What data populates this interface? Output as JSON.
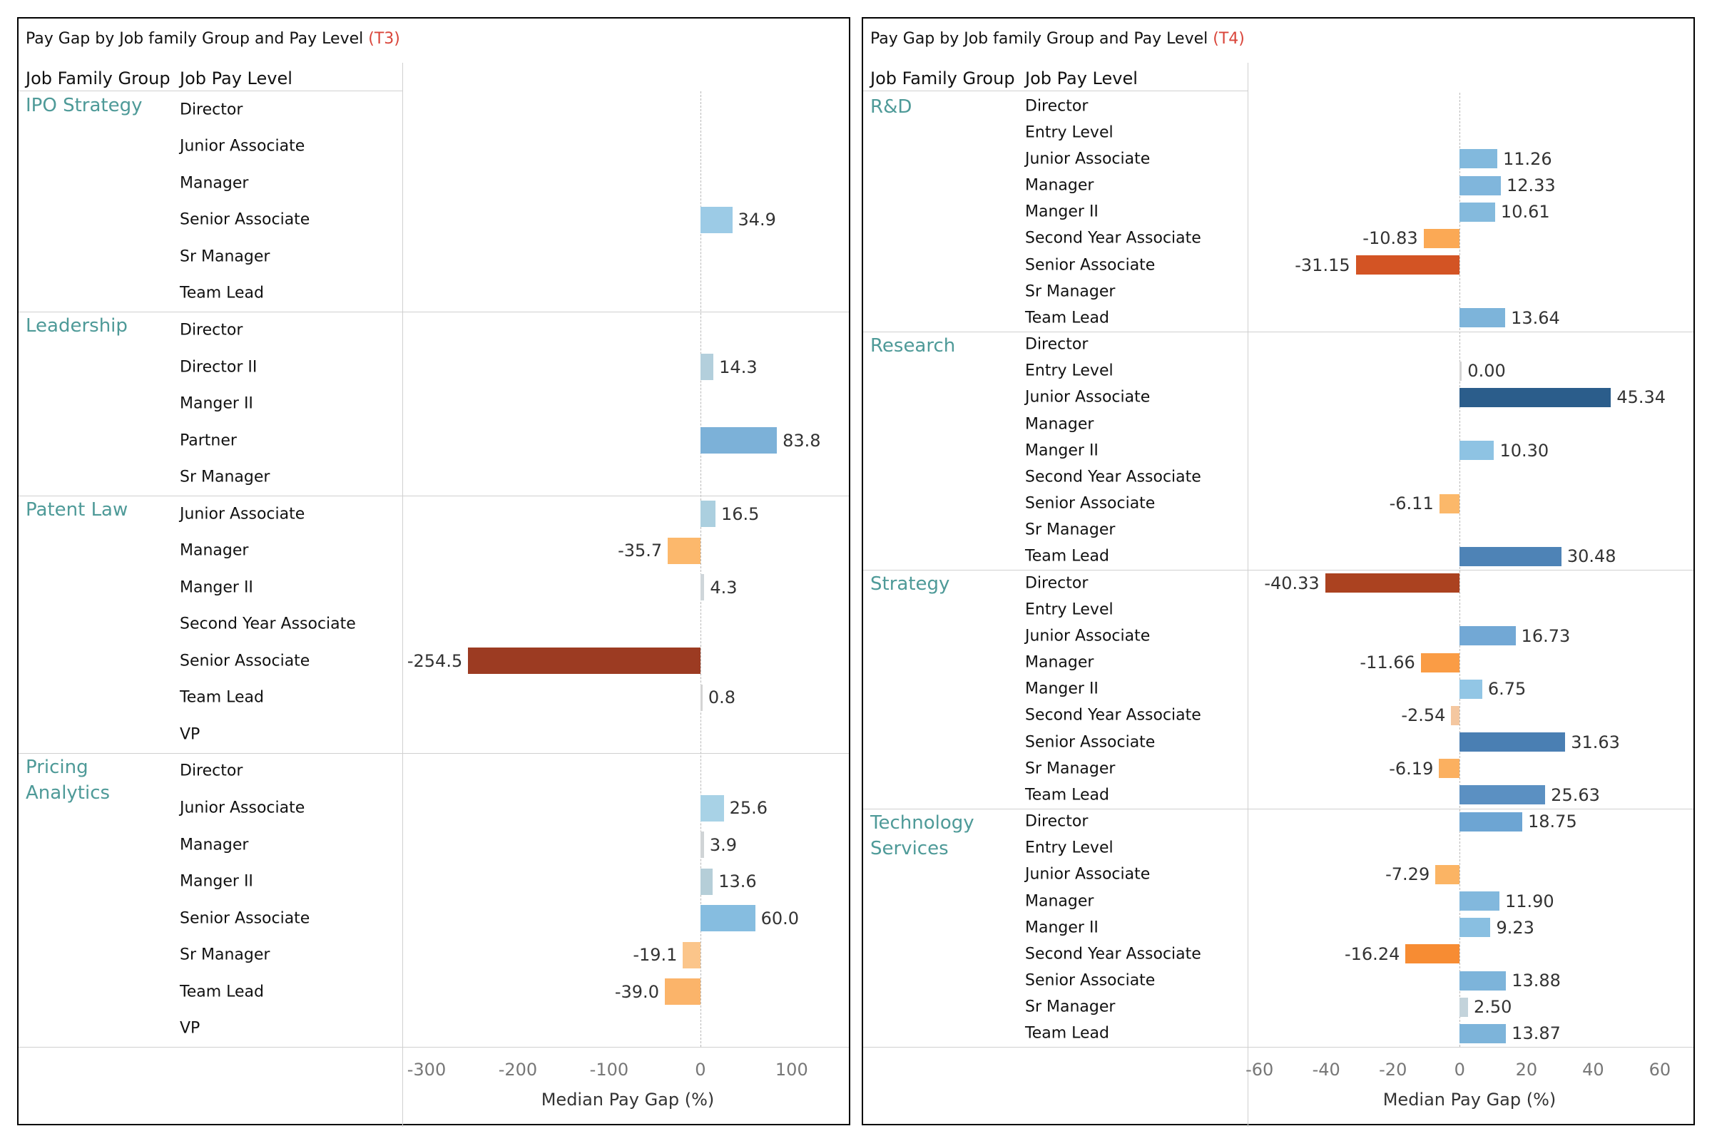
{
  "colors": {
    "category_text": "#4e9a98",
    "accent_tag": "#d9453a",
    "gridline": "#d0d0d0"
  },
  "chart_data": [
    {
      "type": "bar",
      "orientation": "horizontal",
      "title": "Pay Gap by Job family Group and Pay Level",
      "title_tag": "(T3)",
      "column_headers": [
        "Job Family Group",
        "Job Pay Level"
      ],
      "xlabel": "Median Pay Gap (%)",
      "xlim": [
        -325,
        140
      ],
      "xticks": [
        -300,
        -200,
        -100,
        0,
        100
      ],
      "value_format": 1,
      "groups": [
        {
          "name": "IPO Strategy",
          "rows": [
            {
              "level": "Director",
              "value": null
            },
            {
              "level": "Junior Associate",
              "value": null
            },
            {
              "level": "Manager",
              "value": null
            },
            {
              "level": "Senior Associate",
              "value": 34.9,
              "color": "#9ccbe6"
            },
            {
              "level": "Sr Manager",
              "value": null
            },
            {
              "level": "Team Lead",
              "value": null
            }
          ]
        },
        {
          "name": "Leadership",
          "rows": [
            {
              "level": "Director",
              "value": null
            },
            {
              "level": "Director II",
              "value": 14.3,
              "color": "#b3cfdc"
            },
            {
              "level": "Manger II",
              "value": null
            },
            {
              "level": "Partner",
              "value": 83.8,
              "color": "#7cb1d8"
            },
            {
              "level": "Sr Manager",
              "value": null
            }
          ]
        },
        {
          "name": "Patent Law",
          "rows": [
            {
              "level": "Junior Associate",
              "value": 16.5,
              "color": "#abcfdf"
            },
            {
              "level": "Manager",
              "value": -35.7,
              "color": "#fcb86c"
            },
            {
              "level": "Manger II",
              "value": 4.3,
              "color": "#cfd6da"
            },
            {
              "level": "Second Year Associate",
              "value": null
            },
            {
              "level": "Senior Associate",
              "value": -254.5,
              "color": "#9c3b22"
            },
            {
              "level": "Team Lead",
              "value": 0.8,
              "color": "#d4d4d4"
            },
            {
              "level": "VP",
              "value": null
            }
          ]
        },
        {
          "name": "Pricing Analytics",
          "rows": [
            {
              "level": "Director",
              "value": null
            },
            {
              "level": "Junior Associate",
              "value": 25.6,
              "color": "#a8d2e6"
            },
            {
              "level": "Manager",
              "value": 3.9,
              "color": "#d0d4d6"
            },
            {
              "level": "Manger II",
              "value": 13.6,
              "color": "#b5ced8"
            },
            {
              "level": "Senior Associate",
              "value": 60.0,
              "color": "#86bde0"
            },
            {
              "level": "Sr Manager",
              "value": -19.1,
              "color": "#fbc58a"
            },
            {
              "level": "Team Lead",
              "value": -39.0,
              "color": "#fbb46a"
            },
            {
              "level": "VP",
              "value": null
            }
          ]
        }
      ]
    },
    {
      "type": "bar",
      "orientation": "horizontal",
      "title": "Pay Gap by Job family Group and Pay Level",
      "title_tag": "(T4)",
      "column_headers": [
        "Job Family Group",
        "Job Pay Level"
      ],
      "xlabel": "Median Pay Gap (%)",
      "xlim": [
        -61,
        66
      ],
      "xticks": [
        -60,
        -40,
        -20,
        0,
        20,
        40,
        60
      ],
      "value_format": 2,
      "groups": [
        {
          "name": "R&D",
          "rows": [
            {
              "level": "Director",
              "value": null
            },
            {
              "level": "Entry Level",
              "value": null
            },
            {
              "level": "Junior Associate",
              "value": 11.26,
              "color": "#82b9dd"
            },
            {
              "level": "Manager",
              "value": 12.33,
              "color": "#80b6dc"
            },
            {
              "level": "Manger II",
              "value": 10.61,
              "color": "#84badd"
            },
            {
              "level": "Second Year Associate",
              "value": -10.83,
              "color": "#fba955"
            },
            {
              "level": "Senior Associate",
              "value": -31.15,
              "color": "#d35424"
            },
            {
              "level": "Sr Manager",
              "value": null
            },
            {
              "level": "Team Lead",
              "value": 13.64,
              "color": "#7db4da"
            }
          ]
        },
        {
          "name": "Research",
          "rows": [
            {
              "level": "Director",
              "value": null
            },
            {
              "level": "Entry Level",
              "value": 0.0,
              "color": "#d4d4d4"
            },
            {
              "level": "Junior Associate",
              "value": 45.34,
              "color": "#2b5d8b"
            },
            {
              "level": "Manager",
              "value": null
            },
            {
              "level": "Manger II",
              "value": 10.3,
              "color": "#8ec3e3"
            },
            {
              "level": "Second Year Associate",
              "value": null
            },
            {
              "level": "Senior Associate",
              "value": -6.11,
              "color": "#fbb86a"
            },
            {
              "level": "Sr Manager",
              "value": null
            },
            {
              "level": "Team Lead",
              "value": 30.48,
              "color": "#4e83b6"
            }
          ]
        },
        {
          "name": "Strategy",
          "rows": [
            {
              "level": "Director",
              "value": -40.33,
              "color": "#ab4220"
            },
            {
              "level": "Entry Level",
              "value": null
            },
            {
              "level": "Junior Associate",
              "value": 16.73,
              "color": "#72a8d5"
            },
            {
              "level": "Manager",
              "value": -11.66,
              "color": "#fa9c45"
            },
            {
              "level": "Manger II",
              "value": 6.75,
              "color": "#92c6e5"
            },
            {
              "level": "Second Year Associate",
              "value": -2.54,
              "color": "#f4c7a0"
            },
            {
              "level": "Senior Associate",
              "value": 31.63,
              "color": "#4a7fb3"
            },
            {
              "level": "Sr Manager",
              "value": -6.19,
              "color": "#fbb060"
            },
            {
              "level": "Team Lead",
              "value": 25.63,
              "color": "#5b90c2"
            }
          ]
        },
        {
          "name": "Technology Services",
          "rows": [
            {
              "level": "Director",
              "value": 18.75,
              "color": "#6da5d3"
            },
            {
              "level": "Entry Level",
              "value": null
            },
            {
              "level": "Junior Associate",
              "value": -7.29,
              "color": "#fbb464"
            },
            {
              "level": "Manager",
              "value": 11.9,
              "color": "#82b8dd"
            },
            {
              "level": "Manger II",
              "value": 9.23,
              "color": "#89bfe1"
            },
            {
              "level": "Second Year Associate",
              "value": -16.24,
              "color": "#f78c33"
            },
            {
              "level": "Senior Associate",
              "value": 13.88,
              "color": "#7db4da"
            },
            {
              "level": "Sr Manager",
              "value": 2.5,
              "color": "#c3d3db"
            },
            {
              "level": "Team Lead",
              "value": 13.87,
              "color": "#7db4da"
            }
          ]
        }
      ]
    }
  ]
}
